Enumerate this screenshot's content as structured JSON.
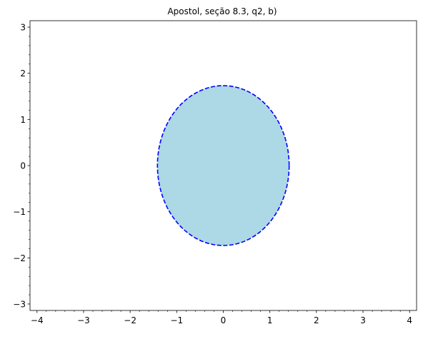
{
  "chart_data": {
    "type": "area",
    "title": "Apostol, seção 8.3, q2, b)",
    "xlabel": "",
    "ylabel": "",
    "xlim": [
      -4.15,
      4.15
    ],
    "ylim": [
      -3.14,
      3.14
    ],
    "x_ticks": [
      -4,
      -3,
      -2,
      -1,
      0,
      1,
      2,
      3,
      4
    ],
    "y_ticks": [
      -3,
      -2,
      -1,
      0,
      1,
      2,
      3
    ],
    "x_tick_labels": [
      "−4",
      "−3",
      "−2",
      "−1",
      "0",
      "1",
      "2",
      "3",
      "4"
    ],
    "y_tick_labels": [
      "−3",
      "−2",
      "−1",
      "0",
      "1",
      "2",
      "3"
    ],
    "minor_tick_step": 0.2,
    "grid": false,
    "shape": {
      "kind": "ellipse",
      "center": [
        0,
        0
      ],
      "semi_axis_x": 1.414,
      "semi_axis_y": 1.732,
      "fill_color": "#add8e6",
      "edge_color": "#0000ff",
      "edge_style": "dashed"
    }
  }
}
